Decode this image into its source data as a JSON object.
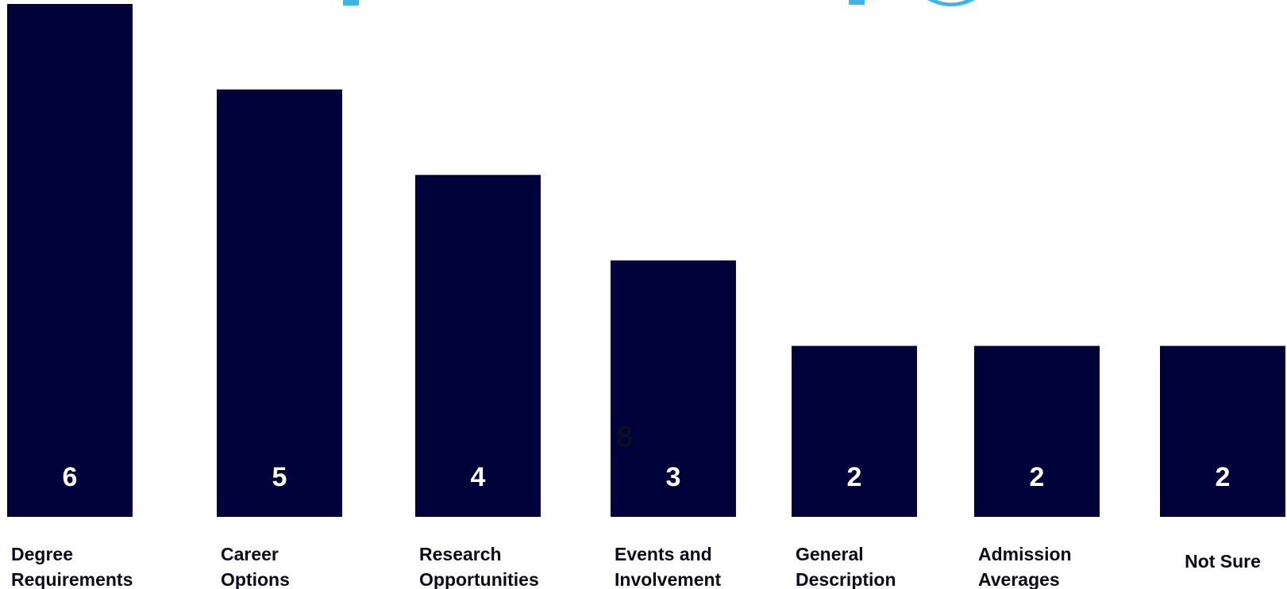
{
  "chart_data": {
    "type": "bar",
    "categories": [
      [
        "Degree",
        "Requirements"
      ],
      [
        "Career",
        "Options"
      ],
      [
        "Research",
        "Opportunities"
      ],
      [
        "Events and",
        "Involvement"
      ],
      [
        "General",
        "Description"
      ],
      [
        "Admission",
        "Averages"
      ],
      [
        "Not Sure"
      ]
    ],
    "values": [
      6,
      5,
      4,
      3,
      2,
      2,
      2
    ],
    "ylim": [
      0,
      6
    ],
    "grid": false,
    "legend": "none",
    "bar_color": "#00033a",
    "value_label_color": "#ffffff",
    "title_color": "#3fb4e6",
    "annotations": [
      "8"
    ]
  }
}
